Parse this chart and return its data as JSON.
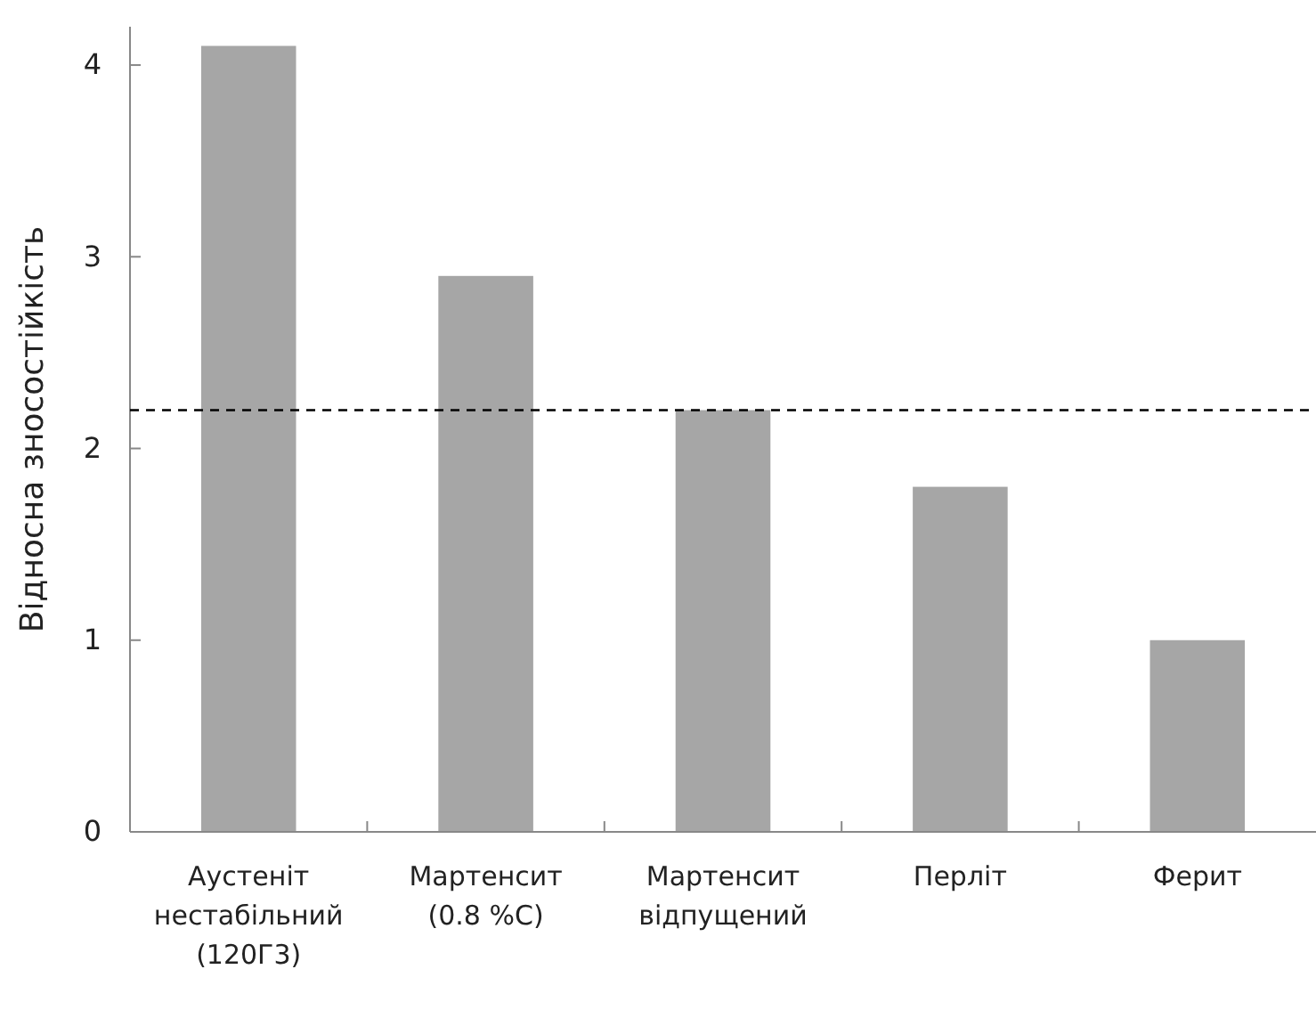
{
  "chart_data": {
    "type": "bar",
    "ylabel": "Відносна зносостійкість",
    "categories": [
      "Аустеніт\nнестабільний\n(120Г3)",
      "Мартенсит\n(0.8 %С)",
      "Мартенсит\nвідпущений",
      "Перліт",
      "Ферит"
    ],
    "values": [
      4.1,
      2.9,
      2.2,
      1.8,
      1.0
    ],
    "color": "#a6a6a6",
    "ylim": [
      0,
      4.2
    ],
    "yticks": [
      0,
      1,
      2,
      3,
      4
    ],
    "grid": false,
    "ref_lines": [
      {
        "axis": "y",
        "value": 2.2,
        "color": "#000000",
        "line_style": "dashed"
      }
    ]
  }
}
